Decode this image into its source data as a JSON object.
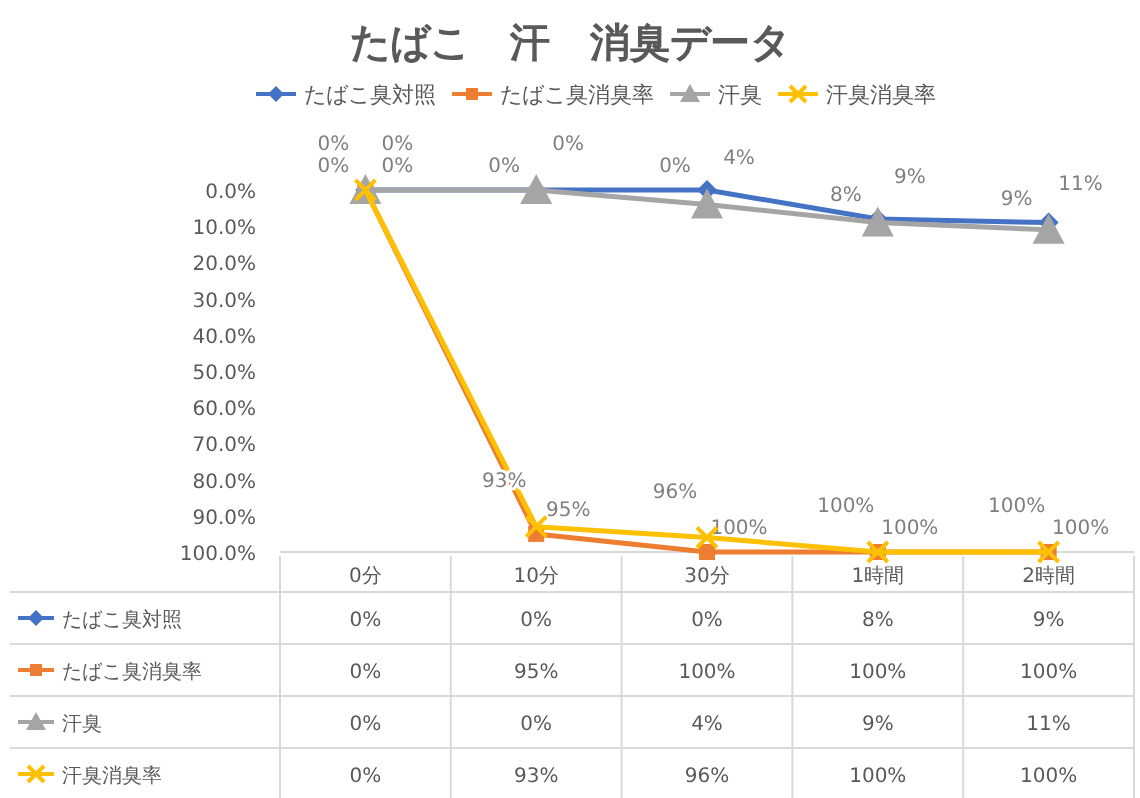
{
  "chart_data": {
    "type": "line",
    "title": "たばこ　汗　消臭データ",
    "categories": [
      "0分",
      "10分",
      "30分",
      "1時間",
      "2時間"
    ],
    "series": [
      {
        "name": "たばこ臭対照",
        "color": "#4472c4",
        "marker": "diamond",
        "values": [
          0,
          0,
          0,
          8,
          9
        ],
        "value_labels": [
          "0%",
          "0%",
          "0%",
          "8%",
          "9%"
        ]
      },
      {
        "name": "たばこ臭消臭率",
        "color": "#ed7d31",
        "marker": "square",
        "values": [
          0,
          95,
          100,
          100,
          100
        ],
        "value_labels": [
          "0%",
          "95%",
          "100%",
          "100%",
          "100%"
        ]
      },
      {
        "name": "汗臭",
        "color": "#a5a5a5",
        "marker": "triangle",
        "values": [
          0,
          0,
          4,
          9,
          11
        ],
        "value_labels": [
          "0%",
          "0%",
          "4%",
          "9%",
          "11%"
        ]
      },
      {
        "name": "汗臭消臭率",
        "color": "#ffc000",
        "marker": "cross",
        "values": [
          0,
          93,
          96,
          100,
          100
        ],
        "value_labels": [
          "0%",
          "93%",
          "96%",
          "100%",
          "100%"
        ]
      }
    ],
    "ylim": [
      100,
      0
    ],
    "yticks": [
      {
        "value": 0,
        "label": "0.0%"
      },
      {
        "value": 10,
        "label": "10.0%"
      },
      {
        "value": 20,
        "label": "20.0%"
      },
      {
        "value": 30,
        "label": "30.0%"
      },
      {
        "value": 40,
        "label": "40.0%"
      },
      {
        "value": 50,
        "label": "50.0%"
      },
      {
        "value": 60,
        "label": "60.0%"
      },
      {
        "value": 70,
        "label": "70.0%"
      },
      {
        "value": 80,
        "label": "80.0%"
      },
      {
        "value": 90,
        "label": "90.0%"
      },
      {
        "value": 100,
        "label": "100.0%"
      }
    ],
    "legend": "top",
    "grid": false
  }
}
